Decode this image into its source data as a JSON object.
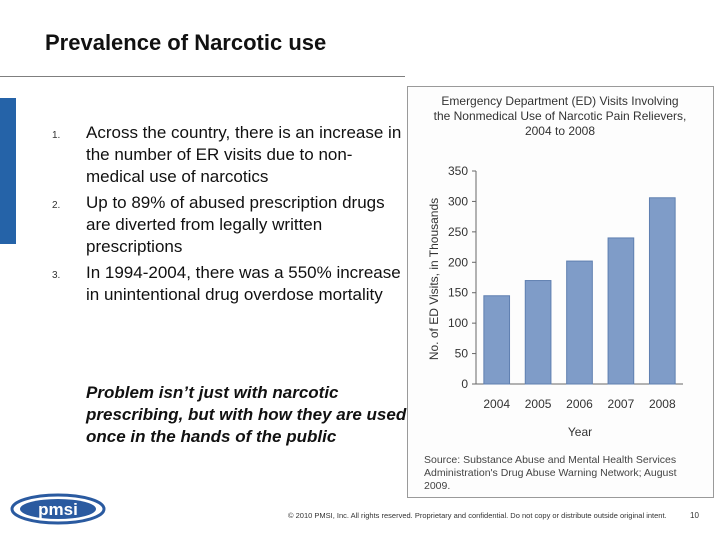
{
  "slide": {
    "title": "Prevalence of Narcotic use",
    "bullets": [
      {
        "num": "1.",
        "text": "Across the country, there is an increase in the number of ER visits due to non-medical use of narcotics"
      },
      {
        "num": "2.",
        "text": "Up to 89% of abused prescription drugs are diverted from legally written prescriptions"
      },
      {
        "num": "3.",
        "text": "In 1994-2004, there was a 550% increase in unintentional drug overdose mortality"
      }
    ],
    "emphasis": "Problem isn’t just with narcotic prescribing, but with how they are used once in the hands of the public"
  },
  "chart_data": {
    "type": "bar",
    "title_lines": [
      "Emergency Department (ED) Visits Involving",
      "the Nonmedical Use of Narcotic Pain Relievers,",
      "2004 to 2008"
    ],
    "categories": [
      "2004",
      "2005",
      "2006",
      "2007",
      "2008"
    ],
    "values": [
      145,
      170,
      202,
      240,
      306
    ],
    "xlabel": "Year",
    "ylabel": "No. of ED Visits, in Thousands",
    "ylim": [
      0,
      350
    ],
    "yticks": [
      "0",
      "50",
      "100",
      "150",
      "200",
      "250",
      "300",
      "350"
    ],
    "grid": false,
    "bar_color": "#7f9cc8",
    "bar_edge": "#5f7fb0"
  },
  "source": {
    "text": "Source: Substance Abuse and Mental Health Services Administration's Drug Abuse Warning Network; August 2009."
  },
  "footer": {
    "logo_text": "pmsi",
    "copyright": "© 2010 PMSI, Inc. All rights reserved. Proprietary and confidential. Do not copy or distribute outside original intent.",
    "page_number": "10"
  }
}
